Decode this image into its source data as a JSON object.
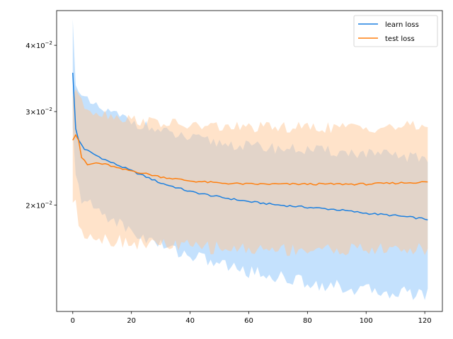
{
  "chart_data": {
    "type": "line",
    "title": "",
    "xlabel": "",
    "ylabel": "",
    "yscale": "log",
    "xlim": [
      -5.5,
      126
    ],
    "ylim": [
      0.0126,
      0.0465
    ],
    "xticks": [
      0,
      20,
      40,
      60,
      80,
      100,
      120
    ],
    "xtick_labels": [
      "0",
      "20",
      "40",
      "60",
      "80",
      "100",
      "120"
    ],
    "yticks": [
      0.02,
      0.03,
      0.04
    ],
    "ytick_labels": [
      {
        "base": "2",
        "exp": "−2"
      },
      {
        "base": "3",
        "exp": "−2"
      },
      {
        "base": "4",
        "exp": "−2"
      }
    ],
    "ytick_times": "×10",
    "grid": false,
    "legend_position": "top-right",
    "series": [
      {
        "name": "learn loss",
        "color": "#1a7fe0",
        "fill_color": "#8ac4fb",
        "x_range": [
          0,
          121
        ],
        "mean_knots": [
          [
            0,
            0.0355
          ],
          [
            1,
            0.0278
          ],
          [
            2,
            0.0265
          ],
          [
            4,
            0.0255
          ],
          [
            8,
            0.0248
          ],
          [
            12,
            0.0242
          ],
          [
            20,
            0.0232
          ],
          [
            30,
            0.022
          ],
          [
            40,
            0.0212
          ],
          [
            50,
            0.0207
          ],
          [
            60,
            0.0203
          ],
          [
            70,
            0.02
          ],
          [
            80,
            0.0198
          ],
          [
            90,
            0.0196
          ],
          [
            100,
            0.0193
          ],
          [
            110,
            0.0191
          ],
          [
            121,
            0.0188
          ]
        ],
        "upper_knots": [
          [
            0,
            0.0448
          ],
          [
            1,
            0.0345
          ],
          [
            3,
            0.0318
          ],
          [
            8,
            0.0305
          ],
          [
            15,
            0.0295
          ],
          [
            20,
            0.0288
          ],
          [
            30,
            0.0275
          ],
          [
            40,
            0.0267
          ],
          [
            50,
            0.0262
          ],
          [
            60,
            0.0258
          ],
          [
            80,
            0.0254
          ],
          [
            100,
            0.025
          ],
          [
            121,
            0.0245
          ]
        ],
        "lower_knots": [
          [
            0,
            0.028
          ],
          [
            1,
            0.0224
          ],
          [
            3,
            0.0206
          ],
          [
            8,
            0.0196
          ],
          [
            15,
            0.0186
          ],
          [
            20,
            0.0178
          ],
          [
            30,
            0.0168
          ],
          [
            40,
            0.0161
          ],
          [
            50,
            0.0155
          ],
          [
            60,
            0.015
          ],
          [
            80,
            0.0143
          ],
          [
            100,
            0.0138
          ],
          [
            121,
            0.0136
          ]
        ]
      },
      {
        "name": "test loss",
        "color": "#ff7f0e",
        "fill_color": "#ffc896",
        "x_range": [
          0,
          121
        ],
        "mean_knots": [
          [
            0,
            0.0265
          ],
          [
            1,
            0.0272
          ],
          [
            2,
            0.0265
          ],
          [
            3,
            0.0246
          ],
          [
            5,
            0.0238
          ],
          [
            8,
            0.024
          ],
          [
            12,
            0.0238
          ],
          [
            16,
            0.0234
          ],
          [
            20,
            0.0232
          ],
          [
            30,
            0.0226
          ],
          [
            40,
            0.0222
          ],
          [
            50,
            0.022
          ],
          [
            60,
            0.0219
          ],
          [
            80,
            0.0219
          ],
          [
            100,
            0.0219
          ],
          [
            121,
            0.0221
          ]
        ],
        "upper_knots": [
          [
            0,
            0.032
          ],
          [
            1,
            0.0335
          ],
          [
            3,
            0.031
          ],
          [
            8,
            0.03
          ],
          [
            20,
            0.029
          ],
          [
            40,
            0.0282
          ],
          [
            60,
            0.028
          ],
          [
            80,
            0.028
          ],
          [
            100,
            0.028
          ],
          [
            121,
            0.0282
          ]
        ],
        "lower_knots": [
          [
            0,
            0.0202
          ],
          [
            1,
            0.02
          ],
          [
            2,
            0.0184
          ],
          [
            4,
            0.0178
          ],
          [
            10,
            0.0173
          ],
          [
            20,
            0.017
          ],
          [
            40,
            0.0167
          ],
          [
            60,
            0.0165
          ],
          [
            80,
            0.0165
          ],
          [
            100,
            0.0165
          ],
          [
            121,
            0.0165
          ]
        ]
      }
    ]
  }
}
